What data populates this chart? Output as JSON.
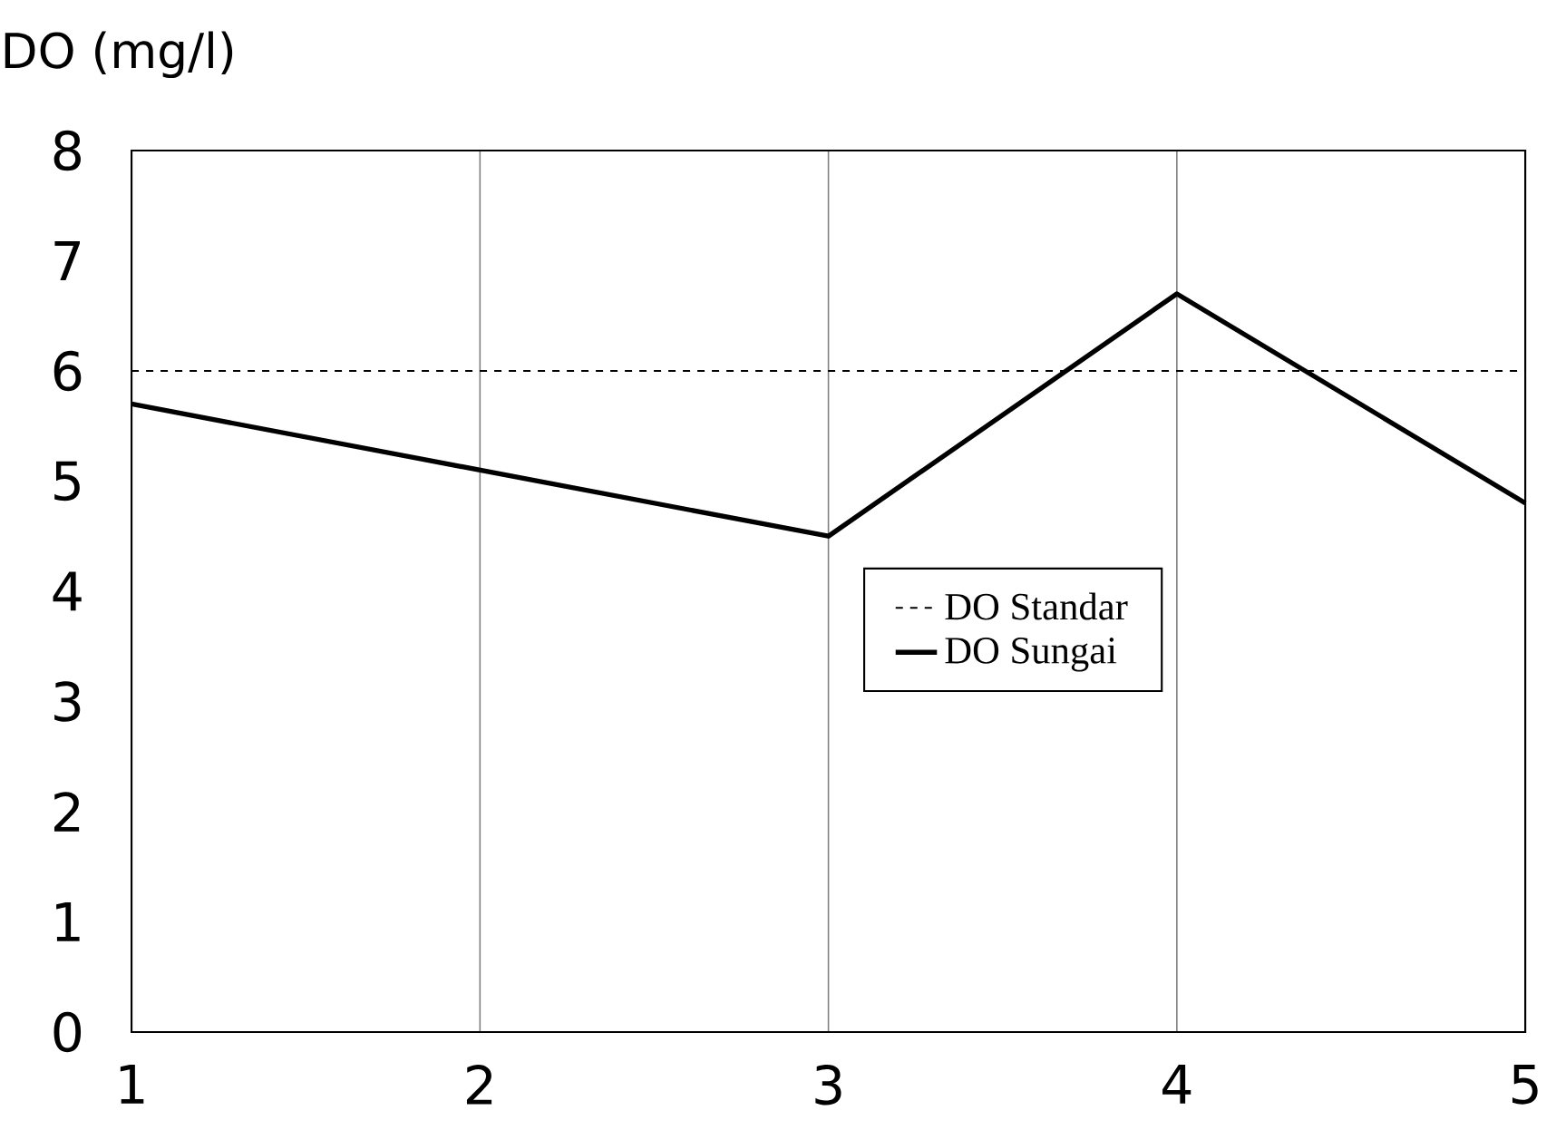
{
  "chart_data": {
    "type": "line",
    "ylabel": "DO (mg/l)",
    "x": [
      1,
      2,
      3,
      4,
      5
    ],
    "series": [
      {
        "name": "DO Sungai",
        "color": "#000000",
        "values": [
          5.7,
          5.1,
          4.5,
          6.7,
          4.8
        ]
      }
    ],
    "ref_lines": [
      {
        "axis": "y",
        "value": 6,
        "label": "DO Standar",
        "color": "#000000",
        "line_style": "dashed"
      }
    ],
    "xlim": [
      1,
      5
    ],
    "ylim": [
      0,
      8
    ],
    "xticks": [
      1,
      2,
      3,
      4,
      5
    ],
    "yticks": [
      0,
      1,
      2,
      3,
      4,
      5,
      6,
      7,
      8
    ],
    "grid": "x",
    "legend": "right",
    "line_style": "solid",
    "marker": "none"
  }
}
